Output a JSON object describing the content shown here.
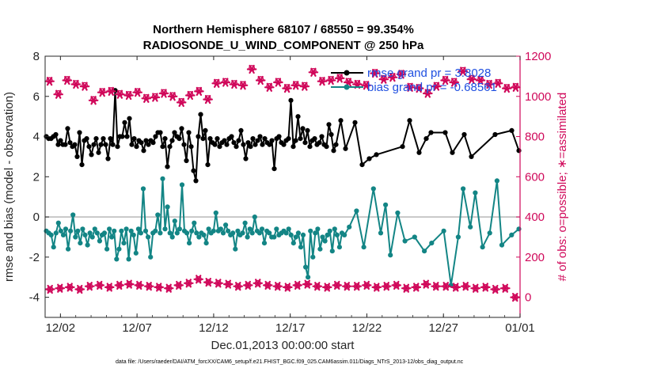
{
  "chart_data": {
    "type": "line",
    "title": "Northern Hemisphere 68107 / 68550 = 99.354%",
    "subtitle": "RADIOSONDE_U_WIND_COMPONENT @ 250 hPa",
    "xlabel": "Dec.01,2013 00:00:00 start",
    "ylabel": "rmse and bias (model - observation)",
    "y2label": "# of obs: o=possible; ∗=assimilated",
    "footnote": "data file: /Users/raeder/DAI/ATM_forcXX/CAM6_setup/f.e21.FHIST_BGC.f09_025.CAM6assim.011/Diags_NTrS_2013-12/obs_diag_output.nc",
    "xlim": [
      0,
      31
    ],
    "ylim": [
      -5,
      8
    ],
    "y2lim": [
      -100,
      1200
    ],
    "grid": false,
    "legend_position": "top-right",
    "x_ticks": [
      {
        "pos": 1,
        "label": "12/02"
      },
      {
        "pos": 6,
        "label": "12/07"
      },
      {
        "pos": 11,
        "label": "12/12"
      },
      {
        "pos": 16,
        "label": "12/17"
      },
      {
        "pos": 21,
        "label": "12/22"
      },
      {
        "pos": 26,
        "label": "12/27"
      },
      {
        "pos": 31,
        "label": "01/01"
      }
    ],
    "y_ticks": [
      "8",
      "6",
      "4",
      "2",
      "0",
      "-2",
      "-4"
    ],
    "y_tick_values": [
      8,
      6,
      4,
      2,
      0,
      -2,
      -4
    ],
    "y2_ticks": [
      "1200",
      "1000",
      "800",
      "600",
      "400",
      "200",
      "0"
    ],
    "y2_tick_values": [
      1200,
      1000,
      800,
      600,
      400,
      200,
      0
    ],
    "series": [
      {
        "name": "rmse grand pr = 3.8028",
        "color": "#000000",
        "axis": "left",
        "values": [
          4.0,
          3.9,
          3.9,
          4.0,
          4.1,
          3.6,
          3.8,
          3.6,
          3.6,
          3.5,
          3.7,
          3.5,
          3.6,
          3.8,
          4.2,
          3.5,
          3.8,
          3.9,
          3.5,
          4.0,
          3.6,
          3.9,
          4.4,
          3.6,
          3.9,
          3.6,
          3.7,
          3.9,
          3.6,
          3.7,
          3.5,
          3.8,
          4.0,
          3.8,
          4.0,
          4.3,
          3.6,
          3.9,
          3.5,
          3.8,
          3.7,
          3.8,
          3.8,
          3.6,
          3.8,
          3.7,
          4.0,
          3.9,
          4.2,
          3.5,
          3.9,
          3.6,
          3.5,
          3.8,
          3.9,
          4.0,
          3.9,
          3.7,
          3.6,
          3.8,
          4.2,
          3.5,
          3.9,
          3.6,
          4.0,
          4.1,
          3.9,
          4.3,
          3.6,
          3.9,
          3.7,
          3.6,
          3.9,
          3.5,
          3.7,
          3.8,
          3.6,
          3.9,
          4.0,
          3.7,
          3.5,
          3.8,
          4.3,
          3.6,
          3.9,
          3.7,
          3.5,
          3.9,
          3.6,
          3.8,
          4.0,
          3.6,
          3.9,
          3.7,
          3.6,
          3.8,
          3.5,
          3.9,
          4.0,
          3.7,
          3.6,
          3.8,
          3.9,
          3.7,
          3.5,
          3.8,
          4.1,
          3.9,
          3.6,
          3.7,
          4.3,
          3.5,
          3.8,
          3.9,
          3.6,
          3.7,
          4.0,
          3.6,
          3.8,
          4.6,
          4.1,
          3.3
        ],
        "spikes": [
          [
            9,
            4.4
          ],
          [
            13,
            3.0
          ],
          [
            15,
            2.6
          ],
          [
            19,
            3.1
          ],
          [
            22,
            3.2
          ],
          [
            26,
            2.9
          ],
          [
            29,
            6.3
          ],
          [
            31,
            4.0
          ],
          [
            33,
            4.7
          ],
          [
            35,
            4.9
          ],
          [
            38,
            3.5
          ],
          [
            41,
            3.3
          ],
          [
            47,
            4.2
          ],
          [
            51,
            2.5
          ],
          [
            54,
            4.2
          ],
          [
            57,
            4.4
          ],
          [
            59,
            2.8
          ],
          [
            62,
            2.3
          ],
          [
            63,
            1.8
          ],
          [
            65,
            5.1
          ],
          [
            68,
            2.6
          ],
          [
            84,
            2.9
          ],
          [
            96,
            2.4
          ],
          [
            103,
            5.8
          ],
          [
            106,
            5.0
          ],
          [
            108,
            4.4
          ],
          [
            118,
            3.5
          ],
          [
            122,
            3.6
          ],
          [
            124,
            4.8
          ],
          [
            126,
            3.4
          ],
          [
            130,
            4.7
          ],
          [
            133,
            2.6
          ],
          [
            136,
            2.9
          ],
          [
            139,
            3.1
          ],
          [
            150,
            3.5
          ],
          [
            153,
            4.8
          ],
          [
            157,
            3.2
          ],
          [
            160,
            3.9
          ],
          [
            162,
            4.2
          ],
          [
            168,
            4.2
          ],
          [
            171,
            3.2
          ],
          [
            176,
            4.1
          ],
          [
            179,
            3.0
          ],
          [
            189,
            4.1
          ],
          [
            196,
            4.3
          ],
          [
            199,
            3.3
          ]
        ]
      },
      {
        "name": "bias grand pr = -0.68561",
        "color": "#138585",
        "axis": "left",
        "values": [
          -0.7,
          -0.8,
          -0.9,
          -0.6,
          -0.8,
          -1.0,
          -0.7,
          -0.9,
          -0.6,
          -0.8,
          -0.7,
          -0.9,
          -1.0,
          -0.7,
          -0.8,
          -0.6,
          -0.9,
          -0.7,
          -0.8,
          -1.0,
          -0.6,
          -0.8,
          -0.7,
          -0.9,
          -0.8,
          -0.7,
          -0.6,
          -0.9,
          -0.7,
          -0.8,
          -1.0,
          -0.7,
          -0.9,
          -0.6,
          -0.8,
          -0.7,
          -0.9,
          -0.8,
          -0.6,
          -0.8,
          -0.9,
          -0.7,
          -1.0,
          -0.6,
          -0.8,
          -0.7,
          -0.9,
          -0.8,
          -0.7,
          -0.6,
          -0.9,
          -0.8,
          -1.0,
          -0.7,
          -0.8,
          -0.6,
          -0.9,
          -0.7,
          -0.8,
          -0.9,
          -0.7,
          -0.6,
          -0.8,
          -1.0,
          -0.7,
          -0.9,
          -0.8,
          -0.6,
          -0.8,
          -0.7,
          -0.9,
          -0.7,
          -0.6,
          -0.8,
          -1.0,
          -0.7,
          -0.9,
          -0.8,
          -0.6,
          -0.7,
          -0.9,
          -0.8,
          -0.7,
          -1.0,
          -0.6,
          -0.8,
          -0.9,
          -0.7,
          -0.8,
          -0.6,
          -0.9,
          -0.7,
          -0.8,
          -1.0,
          -0.7,
          -0.6,
          -0.9,
          -0.8,
          -0.7,
          -0.8,
          -0.6,
          -0.9,
          -0.7,
          -1.0,
          -0.8,
          -0.7,
          -0.9,
          -0.6,
          -0.8,
          -0.7,
          -0.9,
          -0.8,
          -0.6,
          -0.7,
          -1.0,
          -0.8,
          -0.9,
          -0.7,
          -0.8,
          -0.6,
          -0.9,
          -0.7,
          -0.8,
          -0.9
        ],
        "spikes": [
          [
            3,
            -1.5
          ],
          [
            5,
            -0.3
          ],
          [
            9,
            -1.6
          ],
          [
            11,
            0.1
          ],
          [
            14,
            -1.3
          ],
          [
            17,
            -1.4
          ],
          [
            22,
            -1.2
          ],
          [
            25,
            -1.6
          ],
          [
            27,
            -1.0
          ],
          [
            29,
            -2.1
          ],
          [
            30,
            -1.6
          ],
          [
            32,
            -1.3
          ],
          [
            34,
            -2.1
          ],
          [
            37,
            -1.8
          ],
          [
            40,
            1.4
          ],
          [
            43,
            -2.0
          ],
          [
            46,
            0.1
          ],
          [
            48,
            1.9
          ],
          [
            50,
            0.5
          ],
          [
            53,
            -0.2
          ],
          [
            56,
            1.6
          ],
          [
            59,
            -1.3
          ],
          [
            61,
            -0.3
          ],
          [
            64,
            -0.8
          ],
          [
            66,
            -1.3
          ],
          [
            70,
            0.2
          ],
          [
            74,
            -0.4
          ],
          [
            78,
            -1.6
          ],
          [
            82,
            -0.3
          ],
          [
            86,
            0.0
          ],
          [
            90,
            -1.3
          ],
          [
            94,
            -1.0
          ],
          [
            98,
            -0.7
          ],
          [
            102,
            -1.3
          ],
          [
            105,
            -1.5
          ],
          [
            107,
            -2.5
          ],
          [
            108,
            -3.0
          ],
          [
            110,
            -2.0
          ],
          [
            113,
            -1.6
          ],
          [
            115,
            -1.2
          ],
          [
            118,
            -1.7
          ],
          [
            121,
            -1.5
          ],
          [
            125,
            -0.5
          ],
          [
            128,
            0.3
          ],
          [
            131,
            -1.5
          ],
          [
            135,
            1.4
          ],
          [
            138,
            -0.8
          ],
          [
            140,
            0.6
          ],
          [
            142,
            -1.9
          ],
          [
            145,
            0.2
          ],
          [
            148,
            -1.2
          ],
          [
            152,
            -1.0
          ],
          [
            156,
            -1.7
          ],
          [
            159,
            -1.3
          ],
          [
            164,
            -0.7
          ],
          [
            167,
            -3.4
          ],
          [
            170,
            -1.0
          ],
          [
            172,
            1.4
          ],
          [
            175,
            -0.5
          ],
          [
            177,
            1.2
          ],
          [
            180,
            -1.5
          ],
          [
            183,
            -0.8
          ],
          [
            186,
            1.8
          ],
          [
            188,
            -1.4
          ],
          [
            192,
            -0.9
          ],
          [
            195,
            -0.6
          ]
        ]
      }
    ],
    "obs_count": {
      "name": "# of obs",
      "color": "#d0085a",
      "axis": "right",
      "possible_upper": [
        1080,
        1015,
        1085,
        1065,
        1055,
        985,
        1025,
        1030,
        1015,
        1010,
        1025,
        995,
        1000,
        1020,
        1005,
        975,
        1010,
        1030,
        990,
        1070,
        1075,
        1065,
        1060,
        1140,
        1085,
        1050,
        1075,
        1045,
        1060,
        1055,
        1125,
        1080,
        1085,
        1095,
        1075,
        1065,
        1060,
        1120,
        1090,
        1100,
        1115,
        1050,
        1045,
        1020,
        1055,
        1085,
        1075,
        1130,
        1090,
        1085,
        1065,
        1070,
        1045,
        1050
      ],
      "assimilated_upper": [
        1075,
        1010,
        1080,
        1060,
        1050,
        980,
        1020,
        1025,
        1010,
        1005,
        1020,
        990,
        995,
        1015,
        1000,
        970,
        1005,
        1025,
        985,
        1065,
        1070,
        1060,
        1055,
        1135,
        1080,
        1045,
        1070,
        1040,
        1055,
        1050,
        1120,
        1075,
        1080,
        1090,
        1070,
        1060,
        1055,
        1115,
        1085,
        1095,
        1110,
        1045,
        1040,
        1015,
        1050,
        1080,
        1070,
        1125,
        1085,
        1080,
        1060,
        1065,
        1040,
        1045
      ],
      "possible_lower": [
        40,
        45,
        50,
        40,
        55,
        60,
        50,
        60,
        65,
        60,
        55,
        50,
        45,
        60,
        70,
        90,
        75,
        70,
        65,
        55,
        60,
        70,
        60,
        55,
        50,
        60,
        65,
        55,
        50,
        60,
        55,
        55,
        60,
        50,
        55,
        60,
        45,
        50,
        65,
        55,
        55,
        50,
        55,
        45,
        50,
        40,
        45,
        0
      ]
    }
  }
}
